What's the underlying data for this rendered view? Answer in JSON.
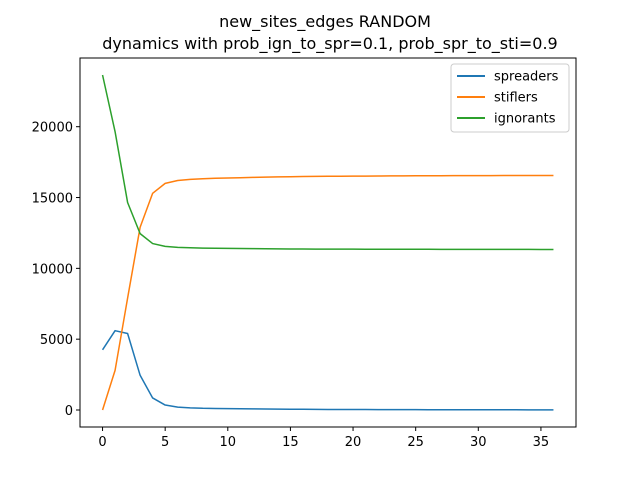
{
  "chart_data": {
    "type": "line",
    "title_line1": "new_sites_edges RANDOM",
    "title_line2": "dynamics with prob_ign_to_spr=0.1, prob_spr_to_sti=0.9",
    "xlabel": "",
    "ylabel": "",
    "xlim": [
      -1.8,
      37.8
    ],
    "ylim": [
      -1200,
      24850
    ],
    "xticks": [
      0,
      5,
      10,
      15,
      20,
      25,
      30,
      35
    ],
    "yticks": [
      0,
      5000,
      10000,
      15000,
      20000
    ],
    "xtick_labels": [
      "0",
      "5",
      "10",
      "15",
      "20",
      "25",
      "30",
      "35"
    ],
    "ytick_labels": [
      "0",
      "5000",
      "10000",
      "15000",
      "20000"
    ],
    "grid": false,
    "legend_position": "top-right",
    "x": [
      0,
      1,
      2,
      3,
      4,
      5,
      6,
      7,
      8,
      9,
      10,
      11,
      12,
      13,
      14,
      15,
      16,
      17,
      18,
      19,
      20,
      21,
      22,
      23,
      24,
      25,
      26,
      27,
      28,
      29,
      30,
      31,
      32,
      33,
      34,
      35,
      36
    ],
    "series": [
      {
        "name": "spreaders",
        "color": "#1f77b4",
        "values": [
          4250,
          5600,
          5400,
          2450,
          850,
          350,
          200,
          150,
          120,
          110,
          100,
          90,
          80,
          70,
          60,
          55,
          50,
          45,
          40,
          38,
          35,
          32,
          30,
          28,
          26,
          24,
          22,
          20,
          19,
          18,
          17,
          16,
          15,
          14,
          13,
          12,
          10
        ]
      },
      {
        "name": "stiflers",
        "color": "#ff7f0e",
        "values": [
          0,
          2800,
          7900,
          12900,
          15300,
          16000,
          16200,
          16280,
          16330,
          16360,
          16380,
          16400,
          16420,
          16440,
          16460,
          16470,
          16480,
          16490,
          16500,
          16505,
          16510,
          16515,
          16520,
          16525,
          16530,
          16533,
          16536,
          16540,
          16543,
          16546,
          16548,
          16550,
          16552,
          16553,
          16554,
          16555,
          16556
        ]
      },
      {
        "name": "ignorants",
        "color": "#2ca02c",
        "values": [
          23650,
          19650,
          14650,
          12450,
          11750,
          11550,
          11480,
          11450,
          11430,
          11420,
          11410,
          11400,
          11390,
          11380,
          11375,
          11370,
          11365,
          11360,
          11358,
          11356,
          11354,
          11352,
          11350,
          11348,
          11346,
          11345,
          11344,
          11343,
          11342,
          11341,
          11340,
          11339,
          11338,
          11337,
          11336,
          11335,
          11334
        ]
      }
    ]
  }
}
